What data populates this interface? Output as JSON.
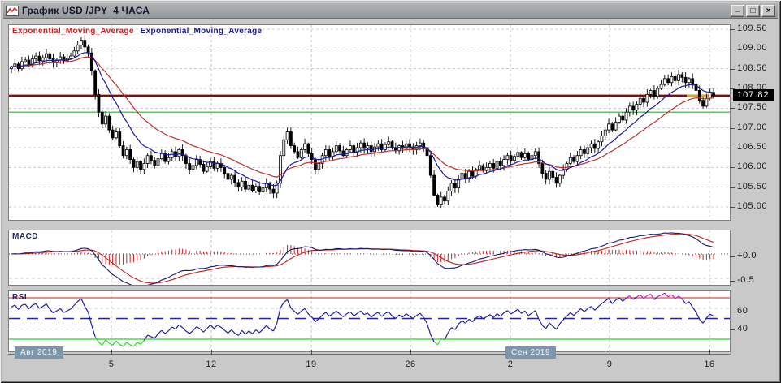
{
  "window": {
    "title": "График USD /JPY  4 ЧАСА",
    "controls": {
      "minimize": "_",
      "maximize": "□",
      "close": "×"
    }
  },
  "legend": {
    "ema_fast_label": "Exponential_Moving_Average",
    "ema_slow_label": "Exponential_Moving_Average"
  },
  "panels": {
    "macd_label": "MACD",
    "rsi_label": "RSI"
  },
  "price_axis": {
    "labels": [
      "109.50",
      "109.00",
      "108.50",
      "108.00",
      "107.50",
      "107.00",
      "106.50",
      "106.00",
      "105.50",
      "105.00"
    ],
    "current_price": "107.82"
  },
  "macd_axis": [
    "+0.0",
    "-0.5"
  ],
  "rsi_axis": [
    "60",
    "40"
  ],
  "x_axis": {
    "months": [
      {
        "text": "Авг 2019"
      },
      {
        "text": "Сен 2019"
      }
    ],
    "days": [
      "5",
      "12",
      "19",
      "26",
      "2",
      "9",
      "16"
    ]
  },
  "colors": {
    "ema_fast": "#1a1aa0",
    "ema_slow": "#c03030",
    "price_line": "#7a0f0f",
    "price_line_marker": "#e8a020",
    "green_level": "#3aa83a",
    "grid": "#cdcdcd",
    "grid_vertical": "#c2c2c2",
    "candle_stroke": "#000000",
    "candle_bull_fill": "#ffffff",
    "candle_bear_fill": "#000000",
    "macd_line": "#1a1a70",
    "macd_signal": "#c02020",
    "macd_zero": "#cc2222",
    "macd_histogram": "#cc2222",
    "rsi_line": "#2020a0",
    "rsi_overbought_line": "#cc2222",
    "rsi_oversold_line": "#33cc33",
    "rsi_mid_line": "#2222a8",
    "rsi_above_color": "#cc22cc",
    "rsi_below_color": "#33cc33",
    "date_box_bg": "#7e96ad",
    "price_box_bg": "#000000",
    "price_box_fg": "#ffffff"
  },
  "chart_data": {
    "type": "candlestick",
    "instrument": "USD /JPY",
    "timeframe": "4 ЧАСА",
    "price_axis": {
      "min": 105.0,
      "max": 109.5,
      "step": 0.5
    },
    "levels": {
      "current_price": 107.82,
      "current_price_line": 107.82,
      "green_line": 107.4
    },
    "x_tick_day_labels": [
      "5",
      "12",
      "19",
      "26",
      "2",
      "9",
      "16"
    ],
    "x_month_labels": [
      "Авг 2019",
      "Сен 2019"
    ],
    "indicators": {
      "ema_fast_period": 12,
      "ema_slow_period": 26,
      "macd": {
        "fast": 12,
        "slow": 26,
        "signal": 9,
        "zero_line": 0.0,
        "lower_gridline": -0.5,
        "axis_labels": [
          "+0.0",
          "-0.5"
        ]
      },
      "rsi": {
        "period": 14,
        "overbought": 70,
        "midline": 50,
        "oversold": 30,
        "gridlines": [
          60,
          40
        ],
        "axis_labels": [
          "60",
          "40"
        ]
      }
    },
    "candles": {
      "open_equals_prev_close": true,
      "closes": [
        108.55,
        108.62,
        108.5,
        108.68,
        108.72,
        108.6,
        108.75,
        108.82,
        108.7,
        108.78,
        108.88,
        108.75,
        108.65,
        108.72,
        108.8,
        108.7,
        108.76,
        108.82,
        108.95,
        109.1,
        109.22,
        109.05,
        108.9,
        108.45,
        107.85,
        107.4,
        107.1,
        107.3,
        106.95,
        106.75,
        106.9,
        106.55,
        106.3,
        106.45,
        106.2,
        106.0,
        106.15,
        105.95,
        106.1,
        106.3,
        106.18,
        106.05,
        106.22,
        106.35,
        106.15,
        106.25,
        106.4,
        106.28,
        106.45,
        106.3,
        106.1,
        105.95,
        106.05,
        106.2,
        106.08,
        105.9,
        106.02,
        106.15,
        105.98,
        106.1,
        106.0,
        105.85,
        105.7,
        105.8,
        105.62,
        105.5,
        105.65,
        105.45,
        105.55,
        105.4,
        105.52,
        105.38,
        105.48,
        105.6,
        105.45,
        105.35,
        105.6,
        106.3,
        106.7,
        106.9,
        106.55,
        106.4,
        106.25,
        106.45,
        106.6,
        106.35,
        106.2,
        105.95,
        106.1,
        106.3,
        106.45,
        106.28,
        106.4,
        106.55,
        106.42,
        106.3,
        106.45,
        106.55,
        106.38,
        106.5,
        106.62,
        106.48,
        106.55,
        106.4,
        106.52,
        106.6,
        106.45,
        106.58,
        106.65,
        106.5,
        106.42,
        106.55,
        106.48,
        106.6,
        106.52,
        106.45,
        106.55,
        106.62,
        106.5,
        106.3,
        105.8,
        105.3,
        105.05,
        105.25,
        105.15,
        105.4,
        105.6,
        105.48,
        105.7,
        105.85,
        105.72,
        105.9,
        105.78,
        105.95,
        106.05,
        105.92,
        106.0,
        106.1,
        105.98,
        106.15,
        106.05,
        106.2,
        106.3,
        106.18,
        106.28,
        106.38,
        106.25,
        106.35,
        106.2,
        106.3,
        106.4,
        106.1,
        105.85,
        105.7,
        105.9,
        105.75,
        105.6,
        105.8,
        105.95,
        106.1,
        106.25,
        106.15,
        106.3,
        106.45,
        106.35,
        106.5,
        106.6,
        106.48,
        106.65,
        106.8,
        106.95,
        107.1,
        106.95,
        107.15,
        107.3,
        107.2,
        107.4,
        107.55,
        107.45,
        107.6,
        107.75,
        107.65,
        107.85,
        107.95,
        107.8,
        108.0,
        108.1,
        108.25,
        108.15,
        108.3,
        108.2,
        108.35,
        108.28,
        108.15,
        108.25,
        108.1,
        107.95,
        107.7,
        107.55,
        107.75,
        107.9,
        107.82
      ]
    }
  }
}
